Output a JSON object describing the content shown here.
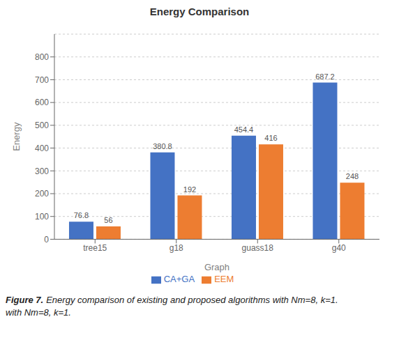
{
  "chart_data": {
    "type": "bar",
    "title": "Energy Comparison",
    "xlabel": "Graph",
    "ylabel": "Energy",
    "categories": [
      "tree15",
      "g18",
      "guass18",
      "g40"
    ],
    "series": [
      {
        "name": "CA+GA",
        "color": "#4472C4",
        "values": [
          76.8,
          380.8,
          454.4,
          687.2
        ]
      },
      {
        "name": "EEM",
        "color": "#ED7D31",
        "values": [
          56,
          192,
          416,
          248
        ]
      }
    ],
    "ylim": [
      0,
      900
    ],
    "yticks": [
      0,
      100,
      200,
      300,
      400,
      500,
      600,
      700,
      800
    ],
    "grid": true,
    "legend": "bottom",
    "data_labels": true,
    "annotations": [
      "Figure 7.",
      "Energy comparison of existing and proposed algorithms with Nm=8, k=1.",
      "with Nm=8, k=1."
    ]
  }
}
